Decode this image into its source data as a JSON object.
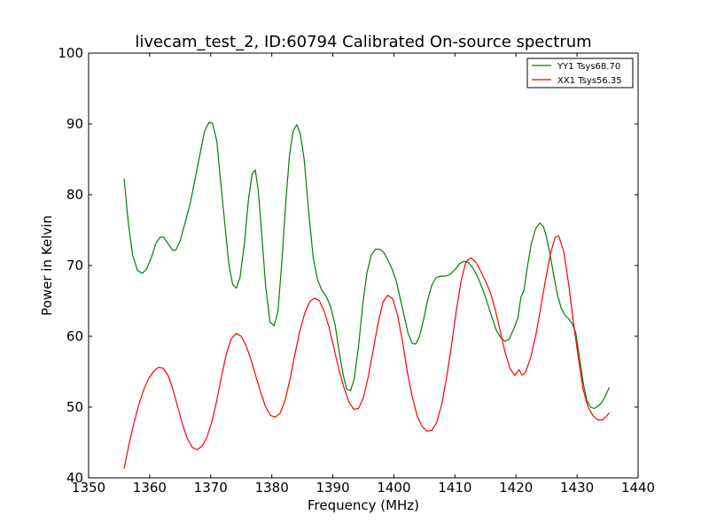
{
  "chart_data": {
    "type": "line",
    "title": "livecam_test_2, ID:60794 Calibrated On-source spectrum",
    "xlabel": "Frequency (MHz)",
    "ylabel": "Power in Kelvin",
    "xlim": [
      1350,
      1440
    ],
    "ylim": [
      40,
      100
    ],
    "xticks": [
      "1350",
      "1360",
      "1370",
      "1380",
      "1390",
      "1400",
      "1410",
      "1420",
      "1430",
      "1440"
    ],
    "yticks": [
      "40",
      "50",
      "60",
      "70",
      "80",
      "90",
      "100"
    ],
    "grid": false,
    "legend_position": "top-right",
    "series": [
      {
        "name": "YY1 Tsys68.70",
        "color": "#008000",
        "x": [
          1355.8,
          1356.5,
          1357.2,
          1358.0,
          1358.8,
          1359.5,
          1360.3,
          1361.0,
          1361.7,
          1362.3,
          1363.0,
          1363.8,
          1364.3,
          1365.0,
          1365.8,
          1366.7,
          1367.5,
          1368.3,
          1369.0,
          1369.7,
          1370.3,
          1371.0,
          1371.5,
          1372.3,
          1373.0,
          1373.6,
          1374.2,
          1374.8,
          1375.5,
          1376.2,
          1376.8,
          1377.3,
          1377.8,
          1378.3,
          1379.0,
          1379.7,
          1380.4,
          1381.0,
          1381.6,
          1382.3,
          1382.9,
          1383.5,
          1384.1,
          1384.7,
          1385.3,
          1386.0,
          1386.8,
          1387.5,
          1388.2,
          1389.0,
          1389.7,
          1390.4,
          1391.0,
          1391.7,
          1392.3,
          1392.9,
          1393.5,
          1394.2,
          1394.9,
          1395.6,
          1396.3,
          1397.0,
          1397.7,
          1398.4,
          1399.0,
          1399.7,
          1400.4,
          1401.0,
          1401.7,
          1402.3,
          1403.0,
          1403.6,
          1404.2,
          1404.9,
          1405.5,
          1406.2,
          1406.9,
          1407.7,
          1408.5,
          1409.3,
          1410.1,
          1410.8,
          1411.5,
          1412.2,
          1412.9,
          1413.6,
          1414.4,
          1415.2,
          1416.0,
          1416.8,
          1417.5,
          1418.2,
          1418.9,
          1419.6,
          1420.3,
          1420.8,
          1421.3,
          1421.9,
          1422.5,
          1423.2,
          1423.9,
          1424.5,
          1425.0,
          1425.6,
          1426.2,
          1426.8,
          1427.4,
          1428.0,
          1428.6,
          1429.2,
          1429.8,
          1430.4,
          1431.0,
          1431.6,
          1432.2,
          1432.8,
          1433.4,
          1434.0,
          1434.6,
          1435.3
        ],
        "y": [
          82.3,
          76.0,
          71.5,
          69.3,
          68.9,
          69.5,
          71.2,
          73.1,
          74.0,
          74.0,
          73.1,
          72.1,
          72.2,
          73.5,
          76.0,
          79.0,
          82.5,
          86.0,
          89.0,
          90.2,
          90.1,
          87.5,
          83.0,
          76.0,
          70.0,
          67.3,
          66.8,
          68.3,
          73.0,
          79.5,
          83.0,
          83.5,
          80.5,
          75.0,
          67.0,
          62.0,
          61.5,
          63.5,
          70.0,
          79.0,
          85.5,
          89.0,
          89.9,
          88.5,
          85.0,
          78.0,
          71.0,
          68.0,
          66.5,
          65.5,
          64.0,
          61.5,
          58.0,
          54.5,
          52.5,
          52.3,
          54.0,
          58.5,
          64.5,
          69.0,
          71.5,
          72.3,
          72.3,
          71.8,
          70.8,
          69.5,
          67.8,
          65.5,
          62.8,
          60.5,
          59.0,
          58.9,
          60.0,
          62.5,
          65.0,
          67.2,
          68.3,
          68.5,
          68.5,
          68.8,
          69.5,
          70.3,
          70.6,
          70.4,
          69.7,
          68.6,
          67.0,
          65.0,
          62.8,
          60.8,
          59.8,
          59.3,
          59.6,
          61.0,
          62.5,
          65.5,
          66.5,
          70.0,
          73.0,
          75.2,
          76.0,
          75.5,
          74.0,
          71.5,
          68.5,
          65.8,
          64.0,
          63.0,
          62.5,
          61.8,
          60.5,
          57.0,
          53.5,
          51.0,
          50.0,
          49.8,
          50.1,
          50.6,
          51.5,
          52.8
        ]
      },
      {
        "name": "XX1 Tsys56.35",
        "color": "#ff0000",
        "x": [
          1355.8,
          1356.6,
          1357.4,
          1358.2,
          1359.0,
          1359.8,
          1360.6,
          1361.4,
          1362.2,
          1363.0,
          1363.8,
          1364.6,
          1365.4,
          1366.2,
          1367.0,
          1367.8,
          1368.6,
          1369.4,
          1370.2,
          1371.0,
          1371.8,
          1372.6,
          1373.4,
          1374.2,
          1375.0,
          1375.8,
          1376.6,
          1377.4,
          1378.2,
          1379.0,
          1379.8,
          1380.6,
          1381.4,
          1382.2,
          1383.0,
          1383.8,
          1384.6,
          1385.4,
          1386.2,
          1387.0,
          1387.8,
          1388.6,
          1389.4,
          1390.2,
          1391.0,
          1391.8,
          1392.6,
          1393.4,
          1394.2,
          1395.0,
          1395.8,
          1396.6,
          1397.4,
          1398.2,
          1399.0,
          1399.8,
          1400.6,
          1401.4,
          1402.2,
          1403.0,
          1403.8,
          1404.6,
          1405.4,
          1406.2,
          1407.0,
          1407.8,
          1408.6,
          1409.4,
          1410.2,
          1411.0,
          1411.8,
          1412.6,
          1413.4,
          1414.2,
          1415.0,
          1415.8,
          1416.6,
          1417.4,
          1418.2,
          1419.0,
          1419.8,
          1420.5,
          1421.0,
          1421.6,
          1422.4,
          1423.2,
          1424.0,
          1424.8,
          1425.6,
          1426.4,
          1427.0,
          1427.8,
          1428.6,
          1429.4,
          1430.2,
          1431.0,
          1431.8,
          1432.6,
          1433.4,
          1434.2,
          1434.8,
          1435.3
        ],
        "y": [
          41.3,
          44.7,
          47.7,
          50.3,
          52.4,
          54.0,
          55.0,
          55.6,
          55.5,
          54.5,
          52.5,
          50.0,
          47.5,
          45.5,
          44.3,
          44.0,
          44.5,
          45.8,
          48.0,
          51.0,
          54.5,
          57.7,
          59.7,
          60.4,
          60.0,
          58.7,
          56.7,
          54.3,
          52.0,
          50.0,
          48.8,
          48.6,
          49.2,
          51.0,
          54.0,
          57.5,
          60.8,
          63.3,
          64.9,
          65.4,
          65.0,
          63.5,
          61.2,
          58.3,
          55.3,
          52.8,
          50.8,
          49.7,
          49.8,
          51.3,
          54.3,
          58.0,
          61.8,
          64.8,
          65.8,
          65.3,
          63.0,
          59.3,
          55.0,
          51.5,
          48.8,
          47.3,
          46.6,
          46.7,
          47.8,
          50.3,
          54.0,
          58.5,
          63.5,
          67.8,
          70.5,
          71.1,
          70.5,
          69.2,
          67.8,
          66.2,
          63.8,
          60.8,
          57.8,
          55.5,
          54.5,
          55.3,
          54.5,
          55.0,
          57.0,
          60.0,
          63.8,
          67.8,
          71.5,
          74.0,
          74.2,
          72.0,
          67.5,
          62.0,
          57.0,
          52.5,
          50.0,
          48.8,
          48.2,
          48.2,
          48.7,
          49.2
        ]
      }
    ]
  }
}
